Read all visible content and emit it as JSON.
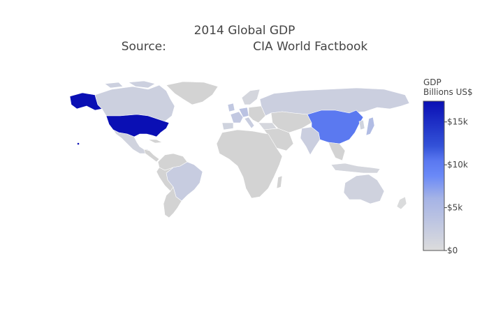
{
  "title": {
    "line1": "2014 Global GDP",
    "line2": "Source:                       CIA World Factbook"
  },
  "colors": {
    "no_data": "#d3d3d3",
    "low": "#dcdcdc",
    "mid_low": "#a5b3e6",
    "mid": "#6a89f7",
    "mid_high": "#3352d8",
    "high": "#0a0fb4",
    "border": "#ffffff"
  },
  "chart_data": {
    "type": "choropleth",
    "value_label": "GDP",
    "colorbar": {
      "title_line1": "GDP",
      "title_line2": "Billions US$",
      "range": [
        0,
        17420
      ],
      "ticks": [
        {
          "value": 0,
          "label": "$0"
        },
        {
          "value": 5000,
          "label": "$5k"
        },
        {
          "value": 10000,
          "label": "$10k"
        },
        {
          "value": 15000,
          "label": "$15k"
        }
      ],
      "scale": [
        [
          0,
          "#dcdcdc"
        ],
        [
          0.35,
          "#a5b3e6"
        ],
        [
          0.5,
          "#6a89f7"
        ],
        [
          0.6,
          "#5a78f0"
        ],
        [
          0.7,
          "#3352d8"
        ],
        [
          1,
          "#0a0fb4"
        ]
      ]
    },
    "countries": [
      {
        "name": "United States",
        "value": 17420
      },
      {
        "name": "China",
        "value": 10360
      },
      {
        "name": "Japan",
        "value": 4770
      },
      {
        "name": "Germany",
        "value": 3820
      },
      {
        "name": "France",
        "value": 2900
      },
      {
        "name": "United Kingdom",
        "value": 2990
      },
      {
        "name": "Brazil",
        "value": 2350
      },
      {
        "name": "Italy",
        "value": 2140
      },
      {
        "name": "India",
        "value": 2050
      },
      {
        "name": "Russia",
        "value": 1860
      },
      {
        "name": "Canada",
        "value": 1790
      },
      {
        "name": "Australia",
        "value": 1480
      },
      {
        "name": "Korea",
        "value": 1410
      },
      {
        "name": "Spain",
        "value": 1400
      },
      {
        "name": "Mexico",
        "value": 1290
      },
      {
        "name": "Indonesia",
        "value": 890
      }
    ]
  }
}
